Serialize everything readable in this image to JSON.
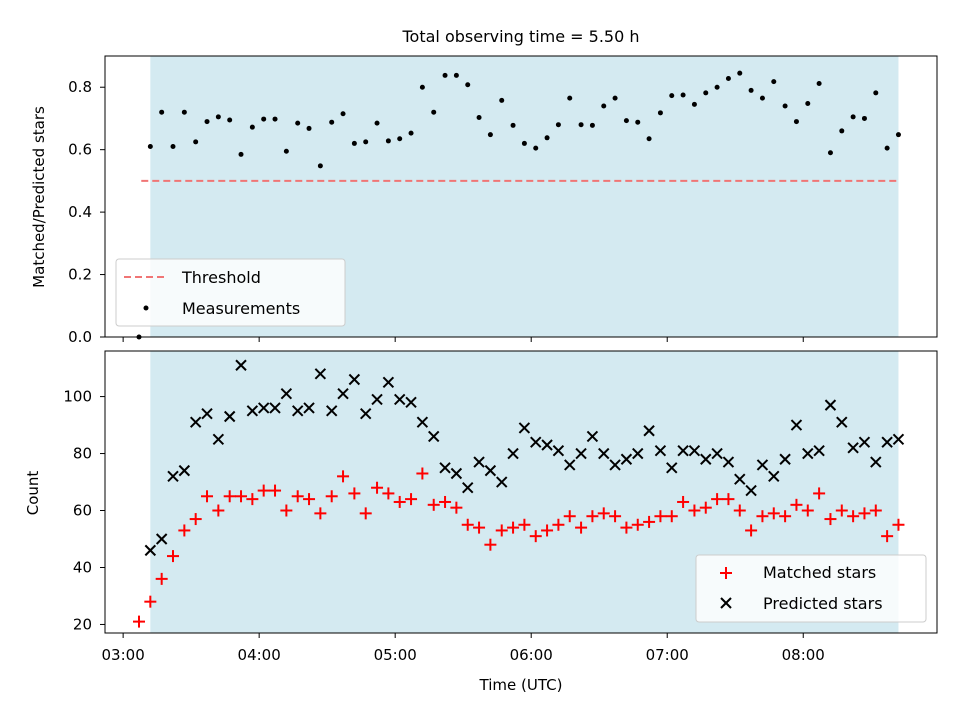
{
  "chart_data": [
    {
      "type": "scatter",
      "title": "Total observing time = 5.50 h",
      "ylabel": "Matched/Predicted stars",
      "xlabel": "",
      "ylim": [
        0,
        0.9
      ],
      "yticks": [
        0.0,
        0.2,
        0.4,
        0.6,
        0.8
      ],
      "ytick_labels": [
        "0.0",
        "0.2",
        "0.4",
        "0.6",
        "0.8"
      ],
      "observing_window": [
        "03:12",
        "08:42"
      ],
      "window_color": "#d4eaf1",
      "threshold": {
        "name": "Threshold",
        "value": 0.5,
        "x_range": [
          "03:08",
          "08:42"
        ],
        "color": "#f07575"
      },
      "legend": {
        "position": "lower-left",
        "entries": [
          "Threshold",
          "Measurements"
        ]
      },
      "series": [
        {
          "name": "Measurements",
          "color": "#000000",
          "x": [
            "03:07",
            "03:12",
            "03:17",
            "03:22",
            "03:27",
            "03:32",
            "03:37",
            "03:42",
            "03:47",
            "03:52",
            "03:57",
            "04:02",
            "04:07",
            "04:12",
            "04:17",
            "04:22",
            "04:27",
            "04:32",
            "04:37",
            "04:42",
            "04:47",
            "04:52",
            "04:57",
            "05:02",
            "05:07",
            "05:12",
            "05:17",
            "05:22",
            "05:27",
            "05:32",
            "05:37",
            "05:42",
            "05:47",
            "05:52",
            "05:57",
            "06:02",
            "06:07",
            "06:12",
            "06:17",
            "06:22",
            "06:27",
            "06:32",
            "06:37",
            "06:42",
            "06:47",
            "06:52",
            "06:57",
            "07:02",
            "07:07",
            "07:12",
            "07:17",
            "07:22",
            "07:27",
            "07:32",
            "07:37",
            "07:42",
            "07:47",
            "07:52",
            "07:57",
            "08:02",
            "08:07",
            "08:12",
            "08:17",
            "08:22",
            "08:27",
            "08:32",
            "08:37",
            "08:42"
          ],
          "values": [
            0.0,
            0.61,
            0.72,
            0.61,
            0.72,
            0.625,
            0.69,
            0.705,
            0.695,
            0.585,
            0.672,
            0.698,
            0.698,
            0.595,
            0.685,
            0.668,
            0.548,
            0.688,
            0.715,
            0.62,
            0.625,
            0.685,
            0.628,
            0.635,
            0.653,
            0.8,
            0.72,
            0.838,
            0.838,
            0.808,
            0.703,
            0.648,
            0.758,
            0.678,
            0.62,
            0.605,
            0.638,
            0.68,
            0.765,
            0.68,
            0.678,
            0.74,
            0.765,
            0.693,
            0.688,
            0.635,
            0.718,
            0.773,
            0.775,
            0.745,
            0.782,
            0.8,
            0.828,
            0.845,
            0.79,
            0.765,
            0.818,
            0.74,
            0.69,
            0.748,
            0.812,
            0.59,
            0.66,
            0.705,
            0.7,
            0.782,
            0.605,
            0.648
          ]
        }
      ]
    },
    {
      "type": "scatter",
      "title": "",
      "xlabel": "Time (UTC)",
      "ylabel": "Count",
      "ylim": [
        17,
        116
      ],
      "yticks": [
        20,
        40,
        60,
        80,
        100
      ],
      "ytick_labels": [
        "20",
        "40",
        "60",
        "80",
        "100"
      ],
      "xticks": [
        "03:00",
        "04:00",
        "05:00",
        "06:00",
        "07:00",
        "08:00"
      ],
      "xtick_labels": [
        "03:00",
        "04:00",
        "05:00",
        "06:00",
        "07:00",
        "08:00"
      ],
      "xlim": [
        "02:52",
        "08:59"
      ],
      "observing_window": [
        "03:12",
        "08:42"
      ],
      "window_color": "#d4eaf1",
      "legend": {
        "position": "lower-right",
        "entries": [
          "Matched stars",
          "Predicted stars"
        ]
      },
      "series": [
        {
          "name": "Matched stars",
          "color": "#ff0000",
          "marker": "plus",
          "x": [
            "03:07",
            "03:12",
            "03:17",
            "03:22",
            "03:27",
            "03:32",
            "03:37",
            "03:42",
            "03:47",
            "03:52",
            "03:57",
            "04:02",
            "04:07",
            "04:12",
            "04:17",
            "04:22",
            "04:27",
            "04:32",
            "04:37",
            "04:42",
            "04:47",
            "04:52",
            "04:57",
            "05:02",
            "05:07",
            "05:12",
            "05:17",
            "05:22",
            "05:27",
            "05:32",
            "05:37",
            "05:42",
            "05:47",
            "05:52",
            "05:57",
            "06:02",
            "06:07",
            "06:12",
            "06:17",
            "06:22",
            "06:27",
            "06:32",
            "06:37",
            "06:42",
            "06:47",
            "06:52",
            "06:57",
            "07:02",
            "07:07",
            "07:12",
            "07:17",
            "07:22",
            "07:27",
            "07:32",
            "07:37",
            "07:42",
            "07:47",
            "07:52",
            "07:57",
            "08:02",
            "08:07",
            "08:12",
            "08:17",
            "08:22",
            "08:27",
            "08:32",
            "08:37",
            "08:42"
          ],
          "values": [
            21,
            28,
            36,
            44,
            53,
            57,
            65,
            60,
            65,
            65,
            64,
            67,
            67,
            60,
            65,
            64,
            59,
            65,
            72,
            66,
            59,
            68,
            66,
            63,
            64,
            73,
            62,
            63,
            61,
            55,
            54,
            48,
            53,
            54,
            55,
            51,
            53,
            55,
            58,
            54,
            58,
            59,
            58,
            54,
            55,
            56,
            58,
            58,
            63,
            60,
            61,
            64,
            64,
            60,
            53,
            58,
            59,
            58,
            62,
            60,
            66,
            57,
            60,
            58,
            59,
            60,
            51,
            55
          ]
        },
        {
          "name": "Predicted stars",
          "color": "#000000",
          "marker": "x",
          "x": [
            "03:12",
            "03:17",
            "03:22",
            "03:27",
            "03:32",
            "03:37",
            "03:42",
            "03:47",
            "03:52",
            "03:57",
            "04:02",
            "04:07",
            "04:12",
            "04:17",
            "04:22",
            "04:27",
            "04:32",
            "04:37",
            "04:42",
            "04:47",
            "04:52",
            "04:57",
            "05:02",
            "05:07",
            "05:12",
            "05:17",
            "05:22",
            "05:27",
            "05:32",
            "05:37",
            "05:42",
            "05:47",
            "05:52",
            "05:57",
            "06:02",
            "06:07",
            "06:12",
            "06:17",
            "06:22",
            "06:27",
            "06:32",
            "06:37",
            "06:42",
            "06:47",
            "06:52",
            "06:57",
            "07:02",
            "07:07",
            "07:12",
            "07:17",
            "07:22",
            "07:27",
            "07:32",
            "07:37",
            "07:42",
            "07:47",
            "07:52",
            "07:57",
            "08:02",
            "08:07",
            "08:12",
            "08:17",
            "08:22",
            "08:27",
            "08:32",
            "08:37",
            "08:42"
          ],
          "values": [
            46,
            50,
            72,
            74,
            91,
            94,
            85,
            93,
            111,
            95,
            96,
            96,
            101,
            95,
            96,
            108,
            95,
            101,
            106,
            94,
            99,
            105,
            99,
            98,
            91,
            86,
            75,
            73,
            68,
            77,
            74,
            70,
            80,
            89,
            84,
            83,
            81,
            76,
            80,
            86,
            80,
            76,
            78,
            80,
            88,
            81,
            75,
            81,
            81,
            78,
            80,
            77,
            71,
            67,
            76,
            72,
            78,
            90,
            80,
            81,
            97,
            91,
            82,
            84,
            77,
            84,
            85
          ]
        }
      ]
    }
  ]
}
